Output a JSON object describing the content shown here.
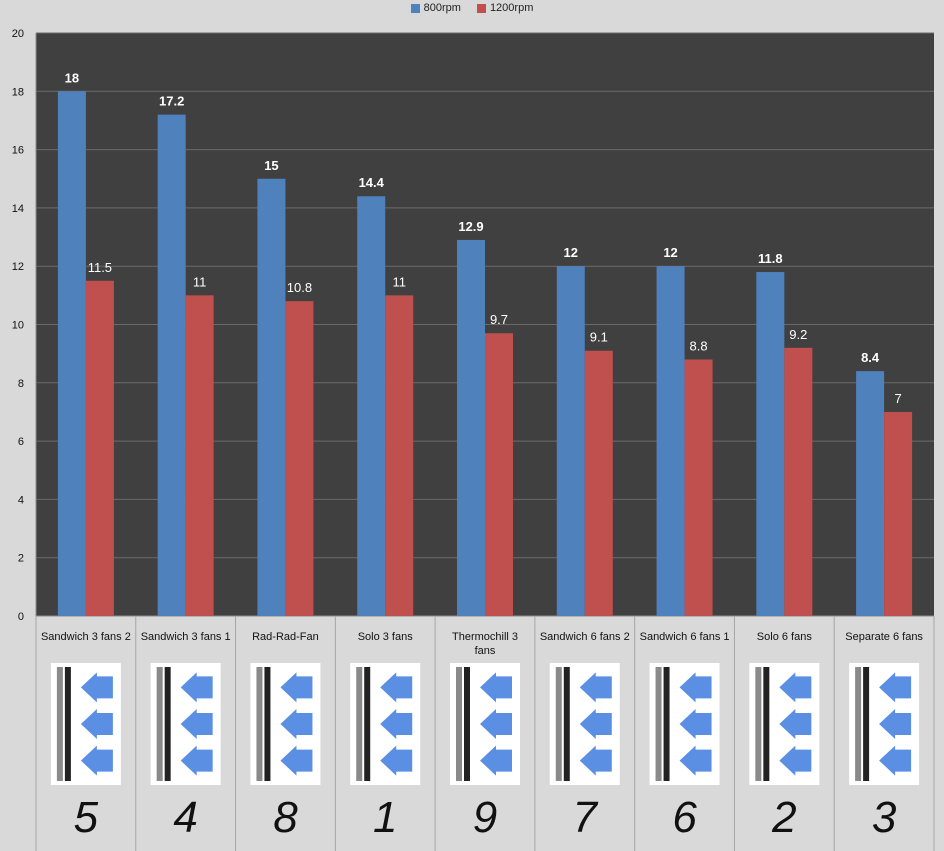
{
  "chart_data": {
    "type": "bar",
    "categories": [
      "Sandwich 3 fans 2",
      "Sandwich 3 fans 1",
      "Rad-Rad-Fan",
      "Solo 3 fans",
      "Thermochill 3 fans",
      "Sandwich 6 fans 2",
      "Sandwich 6 fans 1",
      "Solo 6 fans",
      "Separate 6 fans"
    ],
    "series": [
      {
        "name": "800rpm",
        "values": [
          18,
          17.2,
          15,
          14.4,
          12.9,
          12,
          12,
          11.8,
          8.4
        ],
        "color": "#4f81bd"
      },
      {
        "name": "1200rpm",
        "values": [
          11.5,
          11,
          10.8,
          11,
          9.7,
          9.1,
          8.8,
          9.2,
          7
        ],
        "color": "#c0504d"
      }
    ],
    "value_labels": {
      "800rpm": [
        "18",
        "17.2",
        "15",
        "14.4",
        "12.9",
        "12",
        "12",
        "11.8",
        "8.4"
      ],
      "1200rpm": [
        "11.5",
        "11",
        "10.8",
        "11",
        "9.7",
        "9.1",
        "8.8",
        "9.2",
        "7"
      ]
    },
    "ylim": [
      0,
      20
    ],
    "yticks": [
      "0",
      "2",
      "4",
      "6",
      "8",
      "10",
      "12",
      "14",
      "16",
      "18",
      "20"
    ],
    "legend_position": "top",
    "grid": true,
    "plot_background": "#404040",
    "ranks": [
      "5",
      "4",
      "8",
      "1",
      "9",
      "7",
      "6",
      "2",
      "3"
    ]
  }
}
